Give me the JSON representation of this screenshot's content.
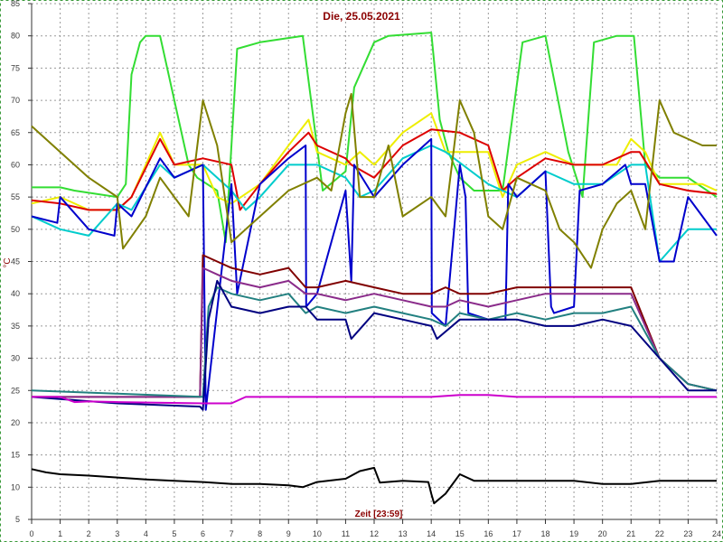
{
  "chart_data": {
    "type": "line",
    "title": "Die, 25.05.2021",
    "xlabel": "Zeit [23:59]",
    "ylabel": "°C",
    "xlim": [
      0,
      24
    ],
    "ylim": [
      5,
      85
    ],
    "xticks": [
      0,
      1,
      2,
      3,
      4,
      5,
      6,
      7,
      8,
      9,
      10,
      11,
      12,
      13,
      14,
      15,
      16,
      17,
      18,
      19,
      20,
      21,
      22,
      23,
      24
    ],
    "yticks": [
      5,
      10,
      15,
      20,
      25,
      30,
      35,
      40,
      45,
      50,
      55,
      60,
      65,
      70,
      75,
      80,
      85
    ],
    "grid": true,
    "series": [
      {
        "color": "#33dd33",
        "x": [
          0,
          1,
          1.5,
          3,
          3.3,
          3.5,
          3.8,
          4,
          4.5,
          5.5,
          5.8,
          6.5,
          6.8,
          7.2,
          8,
          9.5,
          10.2,
          11,
          11.3,
          12,
          12.5,
          14,
          14.3,
          14.6,
          15,
          15.5,
          16.5,
          17.2,
          18,
          18.8,
          19.3,
          19.7,
          20.5,
          21.1,
          21.5,
          22,
          23,
          24
        ],
        "y": [
          56.5,
          56.5,
          56,
          55,
          57,
          74,
          79,
          80,
          80,
          60,
          58,
          56,
          48,
          78,
          79,
          80,
          56,
          59,
          72,
          79,
          80,
          80.5,
          67,
          62,
          58,
          56,
          56,
          79,
          80,
          62,
          55,
          79,
          80,
          80,
          60,
          58,
          58,
          55
        ]
      },
      {
        "color": "#eeee00",
        "x": [
          0,
          1,
          2,
          3,
          3.5,
          4.5,
          5,
          6,
          6.5,
          7,
          8,
          9,
          9.7,
          10,
          11,
          11.5,
          12,
          13,
          14,
          14.5,
          16,
          16.5,
          17,
          18,
          19,
          20,
          20.5,
          21,
          21.5,
          22,
          23,
          23.5,
          24
        ],
        "y": [
          54,
          55,
          53,
          53,
          55,
          65,
          60,
          60,
          55,
          54,
          57,
          63,
          67,
          62,
          60,
          62,
          60,
          65,
          68,
          62,
          62,
          55,
          60,
          62,
          60,
          60,
          60,
          64,
          62,
          57,
          57,
          57,
          56
        ]
      },
      {
        "color": "#dd0000",
        "x": [
          0,
          1,
          2,
          3,
          3.5,
          4.5,
          5,
          6,
          7,
          7.3,
          8,
          9,
          9.7,
          10,
          11,
          11.2,
          12,
          13,
          14,
          15,
          16,
          16.5,
          17,
          18,
          19,
          20,
          21,
          21.3,
          22,
          23,
          24
        ],
        "y": [
          54.5,
          54,
          53,
          53,
          55,
          64,
          60,
          61,
          60,
          53,
          57,
          62,
          65,
          63,
          61,
          60,
          58,
          63,
          65.5,
          65,
          63,
          56,
          58,
          61,
          60,
          60,
          62,
          62,
          57,
          56,
          55.5
        ]
      },
      {
        "color": "#00cccc",
        "x": [
          0,
          1,
          2,
          3,
          3.5,
          4.5,
          5,
          6,
          7,
          7.5,
          8,
          9,
          9.6,
          10,
          11,
          11.5,
          12,
          13,
          14,
          14.5,
          16,
          16.5,
          17,
          18,
          19,
          20,
          21,
          21.5,
          22,
          23,
          24
        ],
        "y": [
          52,
          50,
          49,
          54,
          53,
          60,
          58,
          60,
          56,
          53,
          55,
          60,
          60,
          60,
          58,
          55,
          56,
          61,
          63,
          62,
          57,
          56,
          55,
          59,
          57,
          57,
          60,
          60,
          45,
          50,
          50
        ]
      },
      {
        "color": "#0000cc",
        "x": [
          0,
          0.9,
          1,
          2,
          2.9,
          3,
          3.5,
          4.5,
          5,
          6,
          6.1,
          7,
          7.2,
          8,
          9,
          9.6,
          9.62,
          10,
          11,
          11.2,
          11.3,
          12,
          13,
          14,
          14.02,
          14.5,
          15,
          15.2,
          15.3,
          16,
          16.6,
          16.7,
          17,
          18,
          18.2,
          18.3,
          19,
          19.2,
          20,
          20.8,
          21,
          21.5,
          22,
          22.5,
          23,
          23.5,
          24
        ],
        "y": [
          52,
          51,
          55,
          50,
          49,
          54,
          52,
          61,
          58,
          60,
          22,
          57,
          40,
          57,
          61,
          63,
          38,
          40,
          56,
          42,
          60,
          55,
          60,
          64,
          37,
          35,
          60,
          55,
          37,
          36,
          36,
          57,
          55,
          59,
          38,
          37,
          38,
          56,
          57,
          60,
          57,
          57,
          45,
          45,
          55,
          52,
          49
        ]
      },
      {
        "color": "#808000",
        "x": [
          0,
          1,
          2,
          3,
          3.2,
          4,
          4.5,
          5,
          5.5,
          6,
          6.5,
          7,
          7.5,
          8,
          9,
          10,
          10.5,
          11,
          11.2,
          11.5,
          12,
          12.5,
          13,
          14,
          14.5,
          15,
          15.5,
          16,
          16.5,
          17,
          17.5,
          18,
          18.5,
          19,
          19.3,
          19.6,
          20,
          20.5,
          21,
          21.5,
          22,
          22.5,
          23,
          23.5,
          24
        ],
        "y": [
          66,
          62,
          58,
          55,
          47,
          52,
          58,
          55,
          52,
          70,
          63,
          48,
          50,
          52,
          56,
          58,
          56,
          68,
          71,
          55,
          55,
          63,
          52,
          55,
          52,
          70,
          65,
          52,
          50,
          58,
          57,
          56,
          50,
          48,
          46,
          44,
          50,
          54,
          56,
          50,
          70,
          65,
          64,
          63,
          63
        ]
      },
      {
        "color": "#800000",
        "x": [
          0,
          3,
          5.9,
          6,
          6.5,
          7,
          8,
          9,
          9.6,
          10,
          11,
          12,
          13,
          14,
          14.5,
          15,
          16,
          17,
          18,
          19,
          20,
          21,
          22,
          23,
          24
        ],
        "y": [
          24,
          24,
          24,
          46,
          45,
          44,
          43,
          44,
          41,
          41,
          42,
          41,
          40,
          40,
          41,
          40,
          40,
          41,
          41,
          41,
          41,
          41,
          30,
          26,
          25
        ]
      },
      {
        "color": "#8a2b8a",
        "x": [
          0,
          3,
          5.9,
          6,
          6.5,
          7,
          8,
          9,
          9.6,
          10,
          11,
          12,
          13,
          14,
          14.5,
          15,
          16,
          17,
          18,
          19,
          20,
          21,
          22,
          23,
          24
        ],
        "y": [
          24,
          24,
          24,
          44,
          43,
          42,
          41,
          42,
          40,
          40,
          39,
          40,
          39,
          38,
          38,
          39,
          38,
          39,
          40,
          40,
          40,
          40,
          30,
          26,
          25
        ]
      },
      {
        "color": "#228080",
        "x": [
          0,
          3,
          6,
          6.2,
          6.5,
          7,
          8,
          9,
          9.6,
          10,
          11,
          12,
          13,
          14,
          14.5,
          15,
          16,
          17,
          18,
          19,
          20,
          21,
          22,
          23,
          24
        ],
        "y": [
          25,
          24.5,
          24,
          38,
          41,
          40,
          39,
          40,
          37,
          38,
          37,
          38,
          37,
          36,
          35,
          37,
          36,
          37,
          36,
          37,
          37,
          38,
          30,
          26,
          25
        ]
      },
      {
        "color": "#000080",
        "x": [
          0,
          3,
          5.9,
          6,
          6.2,
          6.5,
          7,
          8,
          9,
          9.6,
          10,
          11,
          11.2,
          12,
          13,
          14,
          14.2,
          15,
          16,
          17,
          18,
          19,
          20,
          21,
          22,
          23,
          24
        ],
        "y": [
          24,
          23,
          22.5,
          22,
          36,
          42,
          38,
          37,
          38,
          38,
          36,
          36,
          33,
          37,
          36,
          35,
          33,
          36,
          36,
          36,
          35,
          35,
          36,
          35,
          30,
          25,
          25
        ]
      },
      {
        "color": "#cc00cc",
        "x": [
          0,
          1,
          1.5,
          2,
          3,
          6,
          7,
          7.5,
          9,
          11,
          11.5,
          13,
          14,
          15,
          16,
          17,
          17.5,
          18,
          19,
          20,
          21,
          22,
          23,
          24
        ],
        "y": [
          24,
          24,
          23.2,
          23.3,
          23.2,
          23,
          23,
          24,
          24,
          24,
          24,
          24,
          24,
          24.3,
          24.3,
          24,
          24,
          24,
          24,
          24,
          24,
          24,
          24,
          24
        ]
      },
      {
        "color": "#000000",
        "x": [
          0,
          0.5,
          1,
          2,
          3,
          4,
          5,
          6,
          7,
          8,
          9,
          9.5,
          10,
          11,
          11.5,
          12,
          12.2,
          13,
          13.9,
          14,
          14.1,
          14.5,
          15,
          15.5,
          16,
          17,
          18,
          19,
          20,
          21,
          22,
          23,
          24
        ],
        "y": [
          12.8,
          12.3,
          12,
          11.8,
          11.5,
          11.2,
          11,
          10.8,
          10.5,
          10.5,
          10.3,
          10,
          10.8,
          11.3,
          12.5,
          13,
          10.7,
          11,
          10.8,
          9,
          7.5,
          9,
          12,
          11,
          11,
          11,
          11,
          11,
          10.5,
          10.5,
          11,
          11,
          11
        ]
      }
    ]
  }
}
